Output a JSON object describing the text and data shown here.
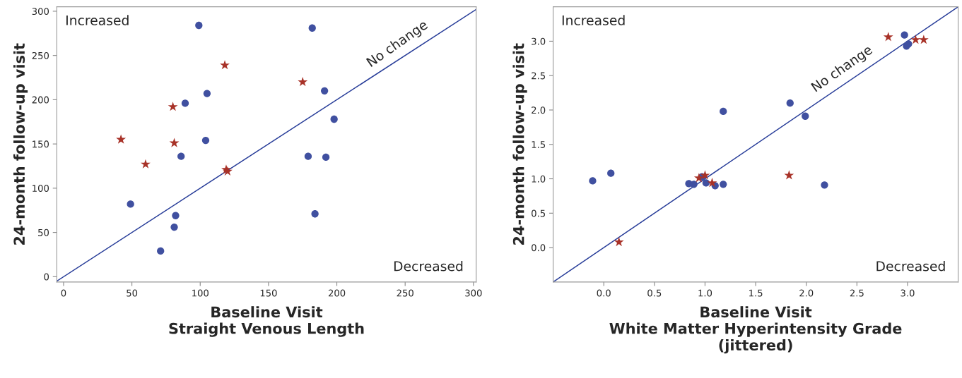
{
  "chart_data": [
    {
      "type": "scatter",
      "xlabel": "Baseline Visit\nStraight Venous Length",
      "ylabel": "24-month follow-up visit",
      "xlim": [
        -5,
        302
      ],
      "ylim": [
        -6,
        305
      ],
      "xticks": [
        0,
        50,
        100,
        150,
        200,
        250,
        300
      ],
      "yticks": [
        0,
        50,
        100,
        150,
        200,
        250,
        300
      ],
      "grid": false,
      "legend": false,
      "annotations": [
        "Increased",
        "Decreased",
        {
          "text": "No change",
          "x": 250,
          "y": 250
        }
      ],
      "series": [
        {
          "type": "line",
          "color": "#2a3f9a",
          "marker": "none",
          "line_style": "solid",
          "x": [
            -5,
            302
          ],
          "values": [
            -5,
            302
          ]
        },
        {
          "color": "#4050a0",
          "marker": "circle",
          "x": [
            99,
            182,
            105,
            89,
            191,
            198,
            104,
            86,
            179,
            192,
            49,
            82,
            81,
            71,
            184
          ],
          "values": [
            284,
            281,
            207,
            196,
            210,
            178,
            154,
            136,
            136,
            135,
            82,
            69,
            56,
            29,
            71
          ]
        },
        {
          "color": "#a83228",
          "marker": "star",
          "x": [
            118,
            175,
            80,
            81,
            42,
            60,
            119,
            120
          ],
          "values": [
            239,
            220,
            192,
            151,
            155,
            127,
            121,
            119
          ]
        }
      ]
    },
    {
      "type": "scatter",
      "xlabel": "Baseline Visit\nWhite Matter Hyperintensity Grade\n(jittered)",
      "ylabel": "24-month follow-up visit",
      "xlim": [
        -0.5,
        3.5
      ],
      "ylim": [
        -0.5,
        3.5
      ],
      "xticks": [
        {
          "value": 0,
          "label": "0.0"
        },
        0.5,
        {
          "value": 1,
          "label": "1.0"
        },
        1.5,
        {
          "value": 2,
          "label": "2.0"
        },
        2.5,
        {
          "value": 3,
          "label": "3.0"
        }
      ],
      "yticks": [
        {
          "value": 0,
          "label": "0.0"
        },
        0.5,
        {
          "value": 1,
          "label": "1.0"
        },
        1.5,
        {
          "value": 2,
          "label": "2.0"
        },
        2.5,
        {
          "value": 3,
          "label": "3.0"
        }
      ],
      "grid": false,
      "legend": false,
      "annotations": [
        "Increased",
        "Decreased",
        {
          "text": "No change",
          "x": 2.43,
          "y": 2.43
        }
      ],
      "series": [
        {
          "type": "line",
          "color": "#2a3f9a",
          "marker": "none",
          "line_style": "solid",
          "x": [
            -0.5,
            3.5
          ],
          "values": [
            -0.5,
            3.5
          ]
        },
        {
          "color": "#4050a0",
          "marker": "circle",
          "x": [
            -0.11,
            0.07,
            0.84,
            0.89,
            0.97,
            1.01,
            1.1,
            1.18,
            1.18,
            1.84,
            1.99,
            2.18,
            2.97,
            3.01,
            2.99
          ],
          "values": [
            0.97,
            1.08,
            0.93,
            0.92,
            1.03,
            0.94,
            0.9,
            0.92,
            1.98,
            2.1,
            1.91,
            0.91,
            3.09,
            2.96,
            2.93
          ]
        },
        {
          "color": "#a83228",
          "marker": "star",
          "x": [
            0.15,
            0.94,
            1.0,
            1.07,
            1.83,
            2.81,
            3.08,
            3.16
          ],
          "values": [
            0.08,
            1.01,
            1.05,
            0.94,
            1.05,
            3.06,
            3.02,
            3.02
          ]
        }
      ]
    }
  ]
}
